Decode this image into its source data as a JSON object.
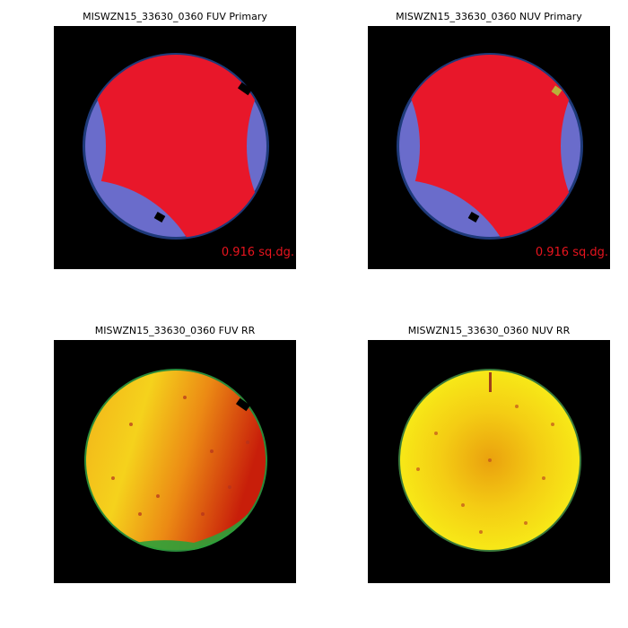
{
  "panels": [
    {
      "title": "MISWZN15_33630_0360 FUV Primary",
      "annotation": "0.916 sq.dg."
    },
    {
      "title": "MISWZN15_33630_0360 NUV Primary",
      "annotation": "0.916 sq.dg."
    },
    {
      "title": "MISWZN15_33630_0360 FUV RR"
    },
    {
      "title": "MISWZN15_33630_0360 NUV RR"
    }
  ]
}
